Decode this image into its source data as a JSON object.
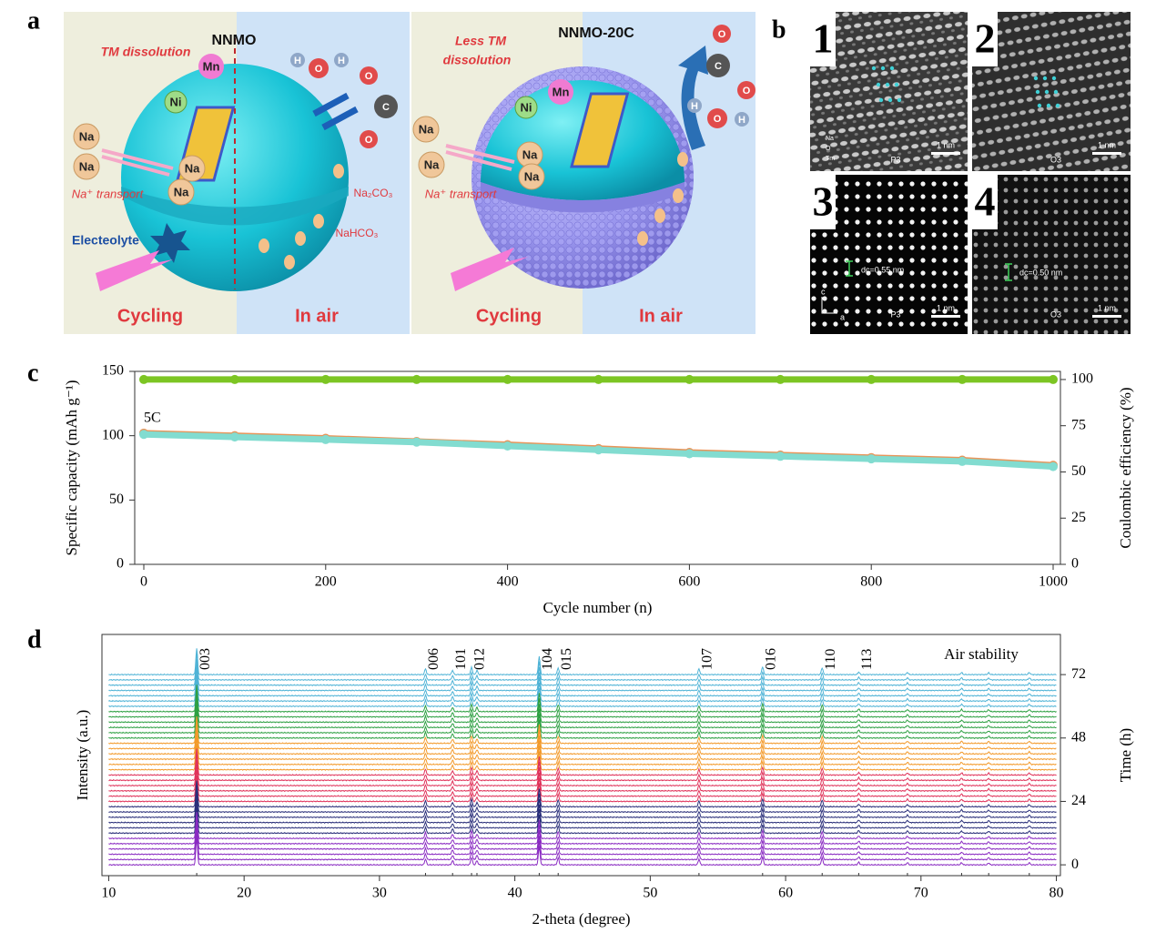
{
  "figure": {
    "panel_labels": [
      "a",
      "b",
      "c",
      "d"
    ],
    "panel_a": {
      "left": {
        "title": "NNMO",
        "tm": "TM dissolution",
        "mn": "Mn",
        "ni": "Ni",
        "na": [
          "Na",
          "Na",
          "Na",
          "Na"
        ],
        "transport": "Na⁺ transport",
        "electrolyte": "Electeolyte",
        "carbonate": "Na₂CO₃",
        "bicarbonate": "NaHCO₃",
        "cycling": "Cycling",
        "air": "In air",
        "water": [
          "H",
          "O",
          "H"
        ],
        "co2": [
          "O",
          "C",
          "O"
        ]
      },
      "right": {
        "title": "NNMO-20C",
        "tm": [
          "Less TM",
          "dissolution"
        ],
        "mn": "Mn",
        "ni": "Ni",
        "na": [
          "Na",
          "Na",
          "Na",
          "Na"
        ],
        "transport": "Na⁺ transport",
        "cycling": "Cycling",
        "air": "In air",
        "water": [
          "H",
          "O",
          "H"
        ],
        "co2": [
          "O",
          "C",
          "O"
        ]
      }
    },
    "panel_b": {
      "numbers": [
        "1",
        "2",
        "3",
        "4"
      ],
      "scale": [
        "1 nm",
        "1 nm",
        "1 nm",
        "1 nm"
      ],
      "phase": [
        "P3",
        "O3",
        "P3",
        "O3"
      ],
      "spacing": [
        "dc=0.55 nm",
        "dc=0.50 nm"
      ],
      "legend": [
        "Na",
        "O",
        "Tm"
      ],
      "axes": [
        "c",
        "a"
      ]
    }
  },
  "chart_data": [
    {
      "type": "line",
      "xlabel": "Cycle number (n)",
      "ylabel": "Specific capacity (mAh g⁻¹)",
      "y2label": "Coulombic efficiency (%)",
      "annotation": "5C",
      "x": [
        0,
        100,
        200,
        300,
        400,
        500,
        600,
        700,
        800,
        900,
        1000
      ],
      "series": [
        {
          "color": "#e8955a",
          "values": [
            102,
            100,
            98,
            95.5,
            93,
            90,
            87,
            85,
            83,
            81,
            77
          ]
        },
        {
          "color": "#82dcd0",
          "values": [
            101,
            99,
            97,
            95,
            92,
            89,
            86,
            84,
            82,
            80,
            76
          ]
        },
        {
          "color": "#7cc523",
          "axis": "y2",
          "values": [
            100,
            100,
            100,
            100,
            100,
            100,
            100,
            100,
            100,
            100,
            100
          ]
        }
      ],
      "xlim": [
        -10,
        1008
      ],
      "xticks": [
        0,
        200,
        400,
        600,
        800,
        1000
      ],
      "ylim": [
        0,
        150
      ],
      "yticks": [
        0,
        50,
        100,
        150
      ],
      "y2lim": [
        0,
        104.4
      ],
      "y2ticks": [
        0,
        25,
        50,
        75,
        100
      ]
    },
    {
      "type": "waterfall",
      "xlabel": "2-theta (degree)",
      "ylabel": "Intensity (a.u.)",
      "y2label": "Time (h)",
      "annotation": "Air stability",
      "xlim": [
        9.5,
        80.3
      ],
      "xticks": [
        10,
        20,
        30,
        40,
        50,
        60,
        70,
        80
      ],
      "y2lim": [
        -4.1,
        87.2
      ],
      "y2ticks": [
        0,
        24,
        48,
        72
      ],
      "peaks": {
        "labels": [
          "003",
          "006",
          "101",
          "012",
          null,
          "104",
          "015",
          "107",
          "016",
          "110",
          "113",
          null,
          null,
          null,
          null
        ],
        "positions": [
          16.5,
          33.4,
          35.4,
          36.8,
          37.2,
          41.8,
          43.2,
          53.6,
          58.3,
          62.7,
          65.4,
          69.0,
          73.0,
          75.0,
          78.0
        ],
        "heights": [
          10,
          2.2,
          1.6,
          2.8,
          1.6,
          7,
          2.6,
          2.2,
          3,
          2.6,
          1,
          0.8,
          0.8,
          0.7,
          0.8
        ]
      },
      "series": [
        {
          "color": "#8a2bc2",
          "times": [
            0,
            2,
            4,
            6,
            8,
            10
          ]
        },
        {
          "color": "#2a2f7a",
          "times": [
            12,
            14,
            16,
            18,
            20,
            22
          ]
        },
        {
          "color": "#e0335a",
          "times": [
            24,
            26,
            28,
            30,
            32,
            34
          ]
        },
        {
          "color": "#f39a2b",
          "times": [
            36,
            38,
            40,
            42,
            44,
            46
          ]
        },
        {
          "color": "#2ea043",
          "times": [
            48,
            50,
            52,
            54,
            56,
            58
          ]
        },
        {
          "color": "#4fb3d6",
          "times": [
            60,
            62,
            64,
            66,
            68,
            70,
            72
          ]
        }
      ]
    }
  ]
}
